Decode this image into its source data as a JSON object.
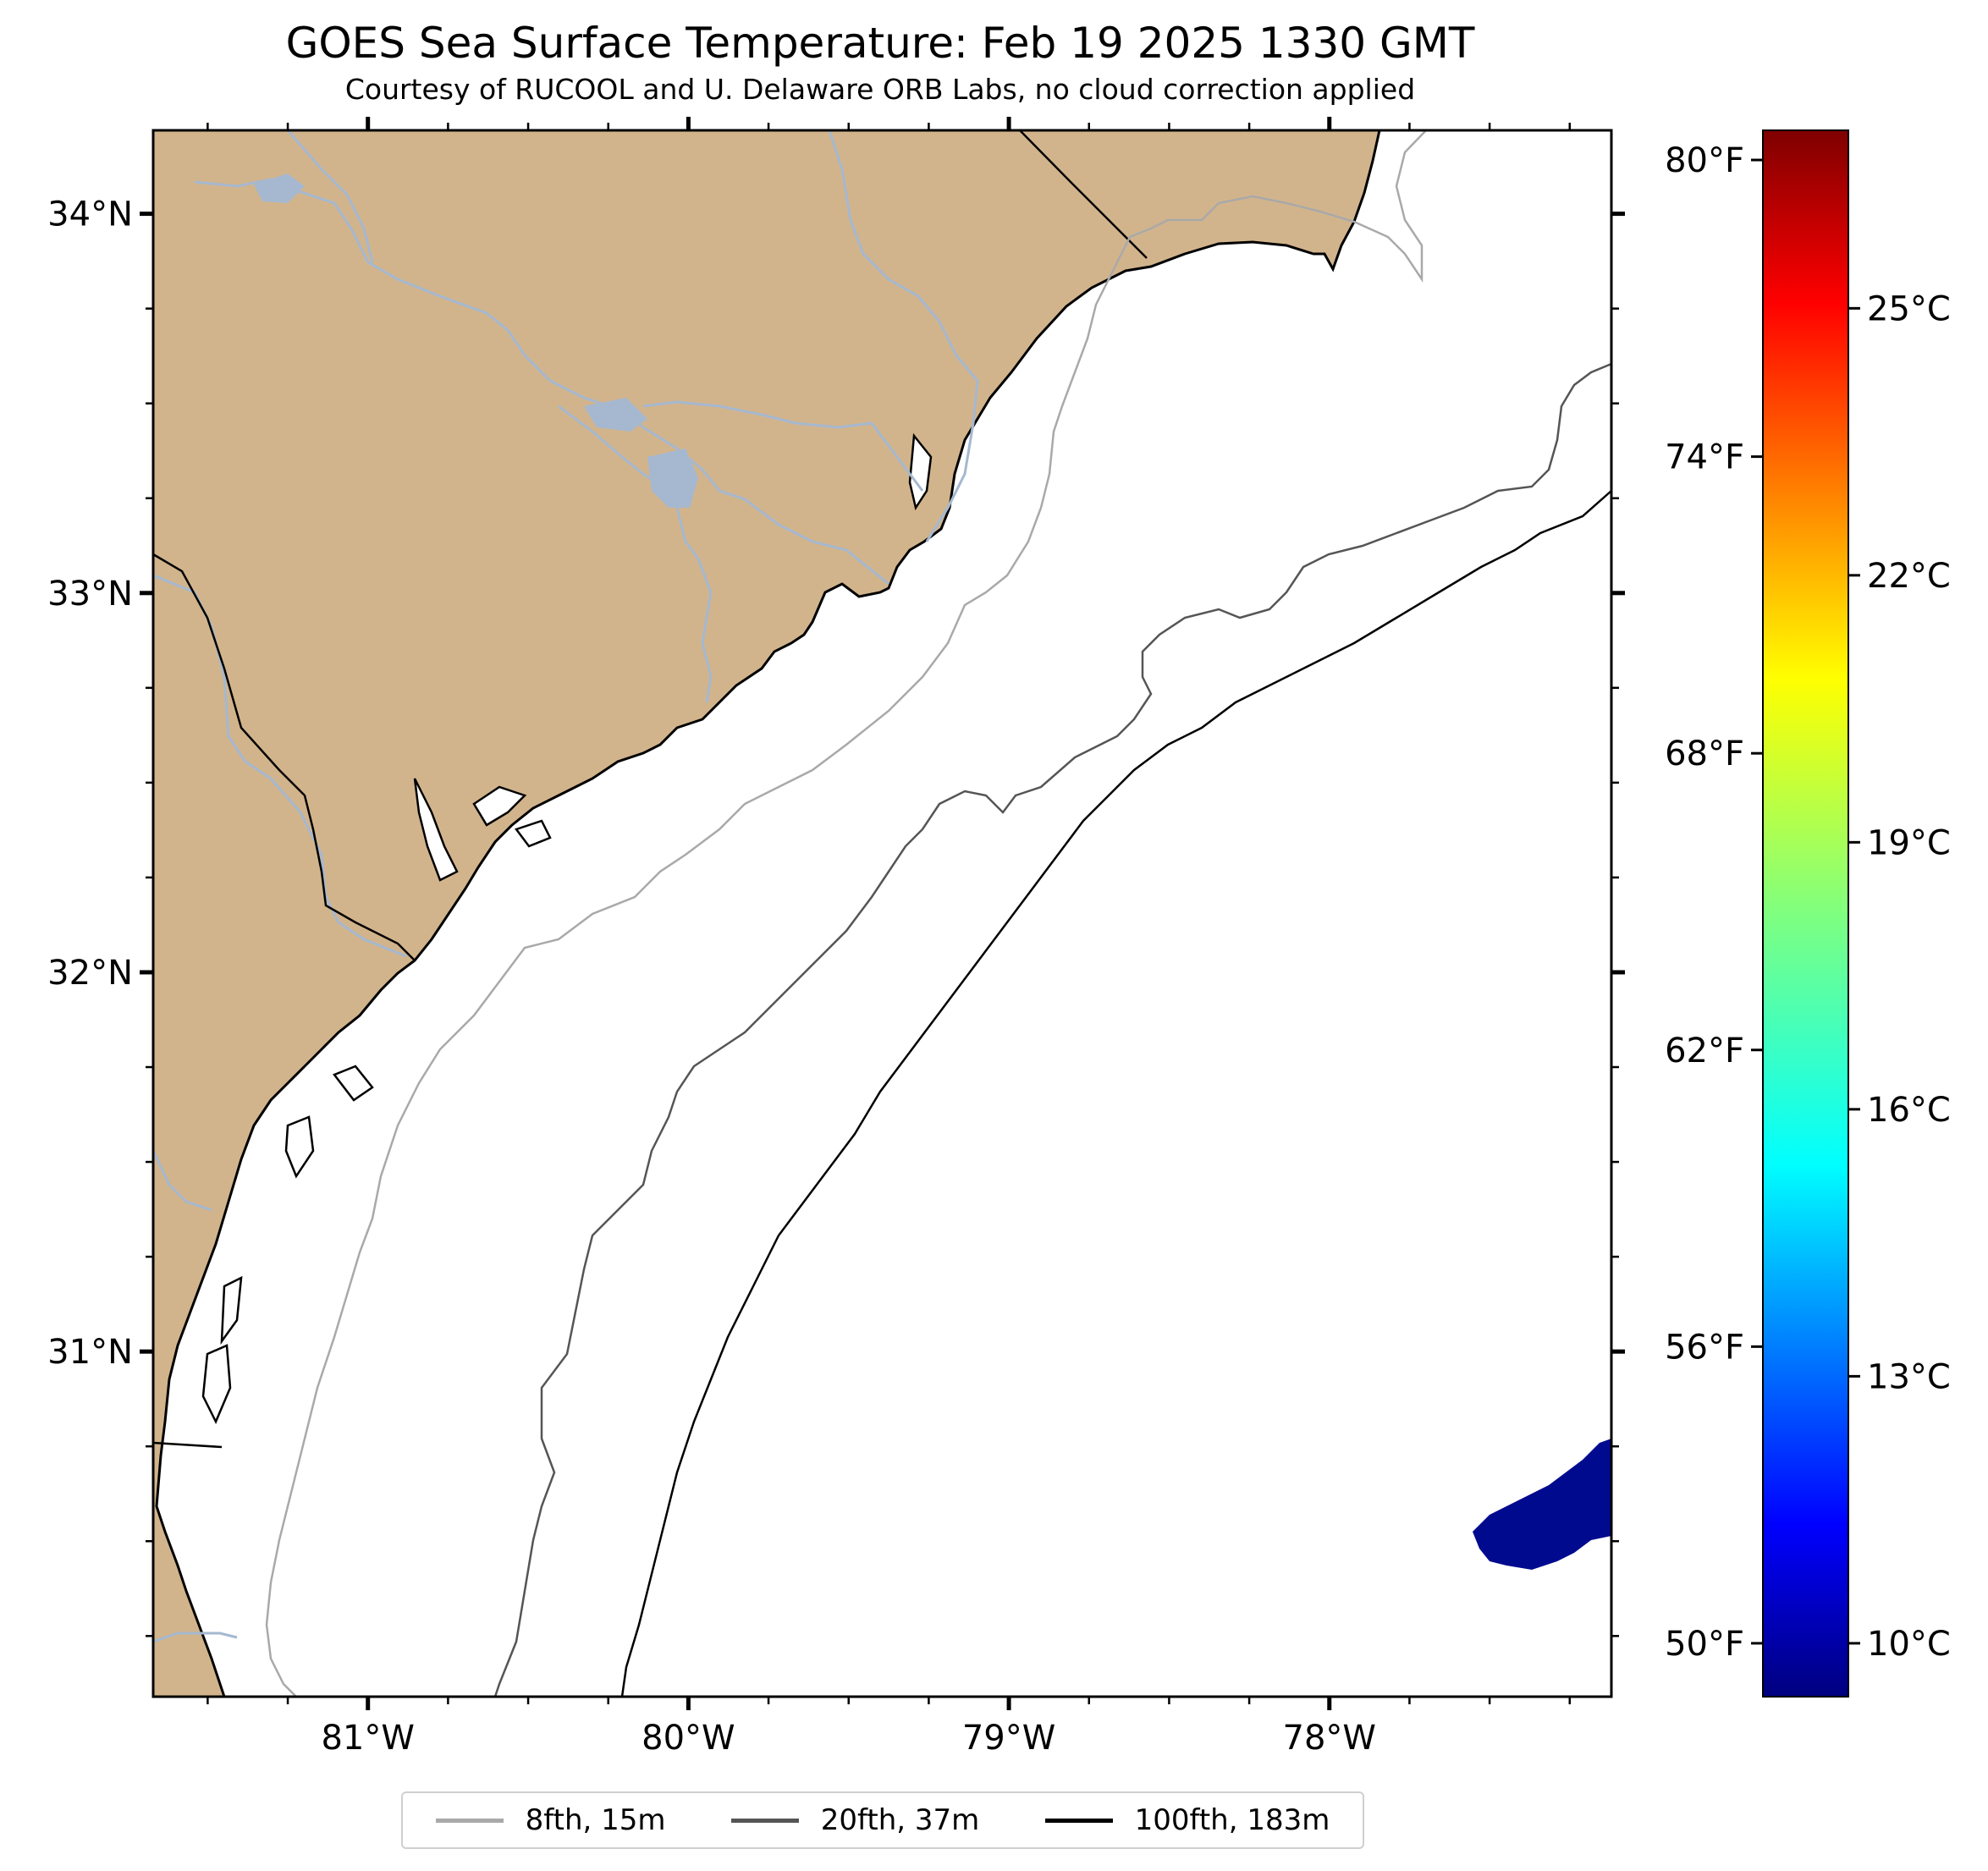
{
  "title": "GOES Sea Surface Temperature: Feb 19 2025 1330 GMT",
  "subtitle": "Courtesy of RUCOOL and U. Delaware ORB Labs, no cloud correction applied",
  "map": {
    "extent": {
      "lon_min": -81.67,
      "lon_max": -77.12,
      "lat_min": 30.09,
      "lat_max": 34.22
    },
    "land_color": "#d2b48c",
    "river_color": "#a5b8d0",
    "ocean_color": "#ffffff",
    "lat_ticks": [
      {
        "value": 34,
        "label": "34°N"
      },
      {
        "value": 33,
        "label": "33°N"
      },
      {
        "value": 32,
        "label": "32°N"
      },
      {
        "value": 31,
        "label": "31°N"
      }
    ],
    "lon_ticks": [
      {
        "value": -81,
        "label": "81°W"
      },
      {
        "value": -80,
        "label": "80°W"
      },
      {
        "value": -79,
        "label": "79°W"
      },
      {
        "value": -78,
        "label": "78°W"
      }
    ],
    "sst_patch": {
      "temp_c": 10,
      "color": "#000a8f",
      "approx_lon": -77.3,
      "approx_lat": 30.5
    }
  },
  "colorbar": {
    "min_c": 9.4,
    "max_c": 27.0,
    "colormap": "jet",
    "celsius_ticks": [
      {
        "value": 10,
        "label": "10°C"
      },
      {
        "value": 13,
        "label": "13°C"
      },
      {
        "value": 16,
        "label": "16°C"
      },
      {
        "value": 19,
        "label": "19°C"
      },
      {
        "value": 22,
        "label": "22°C"
      },
      {
        "value": 25,
        "label": "25°C"
      }
    ],
    "fahrenheit_ticks": [
      {
        "value": 50,
        "label": "50°F"
      },
      {
        "value": 56,
        "label": "56°F"
      },
      {
        "value": 62,
        "label": "62°F"
      },
      {
        "value": 68,
        "label": "68°F"
      },
      {
        "value": 74,
        "label": "74°F"
      },
      {
        "value": 80,
        "label": "80°F"
      }
    ]
  },
  "legend": [
    {
      "label": "8fth, 15m",
      "color": "#a9a9a9"
    },
    {
      "label": "20fth, 37m",
      "color": "#555555"
    },
    {
      "label": "100fth, 183m",
      "color": "#000000"
    }
  ]
}
